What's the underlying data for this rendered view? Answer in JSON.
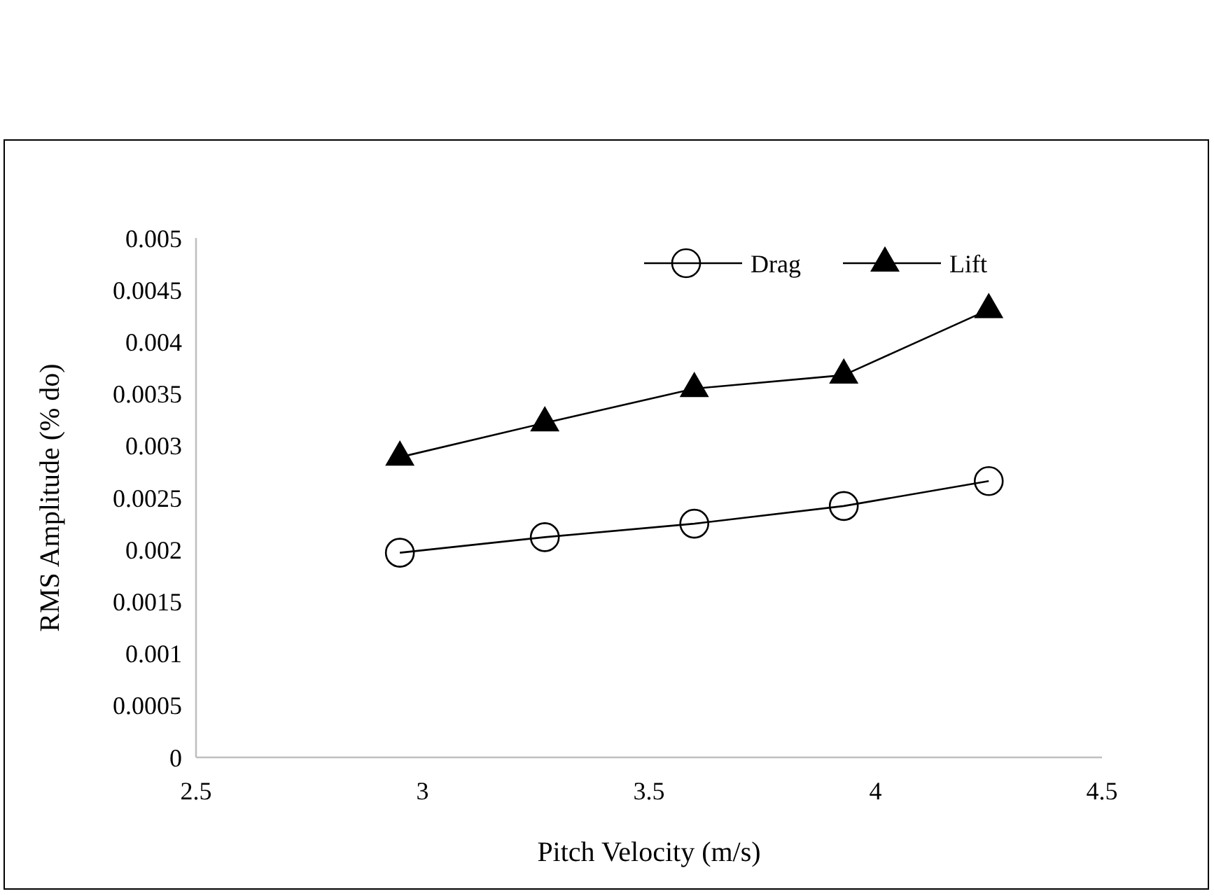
{
  "chart_data": {
    "type": "line",
    "xlabel": "Pitch Velocity (m/s)",
    "ylabel": "RMS Amplitude (% do)",
    "x": [
      2.95,
      3.27,
      3.6,
      3.93,
      4.25
    ],
    "series": [
      {
        "name": "Drag",
        "color": "#000000",
        "marker": "circle",
        "values": [
          0.00197,
          0.00212,
          0.00225,
          0.00242,
          0.00266
        ]
      },
      {
        "name": "Lift",
        "color": "#000000",
        "marker": "triangle",
        "values": [
          0.00289,
          0.00322,
          0.00355,
          0.00368,
          0.00431
        ]
      }
    ],
    "xlim": [
      2.5,
      4.5
    ],
    "xticks": [
      2.5,
      3,
      3.5,
      4,
      4.5
    ],
    "ylim": [
      0,
      0.005
    ],
    "yticks": [
      0,
      0.0005,
      0.001,
      0.0015,
      0.002,
      0.0025,
      0.003,
      0.0035,
      0.004,
      0.0045,
      0.005
    ],
    "grid": false,
    "legend": "top right",
    "line_style": "solid"
  }
}
